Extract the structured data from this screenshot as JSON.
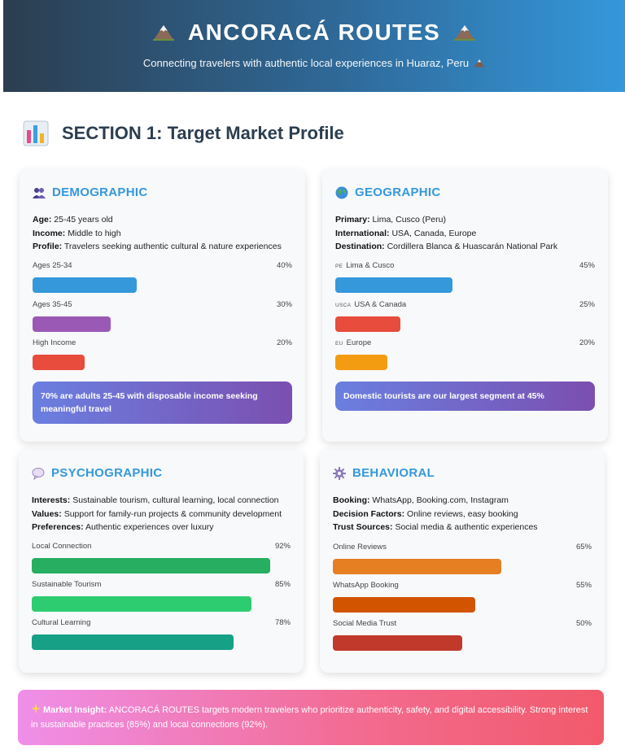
{
  "header": {
    "title": "ANCORACÁ ROUTES",
    "subtitle": "Connecting travelers with authentic local experiences in Huaraz, Peru",
    "icon": "mountain-icon"
  },
  "section": {
    "title": "SECTION 1: Target Market Profile",
    "icon": "bar-chart-icon"
  },
  "demographic": {
    "title": "DEMOGRAPHIC",
    "icon": "people-icon",
    "facts": [
      {
        "label": "Age:",
        "value": "25-45 years old"
      },
      {
        "label": "Income:",
        "value": "Middle to high"
      },
      {
        "label": "Profile:",
        "value": "Travelers seeking authentic cultural & nature experiences"
      }
    ],
    "bars": [
      {
        "label": "Ages 25-34",
        "pct": "40%",
        "value": 40,
        "color": "#3498db"
      },
      {
        "label": "Ages 35-45",
        "pct": "30%",
        "value": 30,
        "color": "#9b59b6"
      },
      {
        "label": "High Income",
        "pct": "20%",
        "value": 20,
        "color": "#e74c3c"
      }
    ],
    "callout": "70% are adults 25-45 with disposable income seeking meaningful travel"
  },
  "geographic": {
    "title": "GEOGRAPHIC",
    "icon": "globe-icon",
    "facts": [
      {
        "label": "Primary:",
        "value": "Lima, Cusco (Peru)"
      },
      {
        "label": "International:",
        "value": "USA, Canada, Europe"
      },
      {
        "label": "Destination:",
        "value": "Cordillera Blanca & Huascarán National Park"
      }
    ],
    "bars": [
      {
        "flag": "PE",
        "label": "Lima & Cusco",
        "pct": "45%",
        "value": 45,
        "color": "#3498db"
      },
      {
        "flag": "USCA",
        "label": "USA & Canada",
        "pct": "25%",
        "value": 25,
        "color": "#e74c3c"
      },
      {
        "flag": "EU",
        "label": "Europe",
        "pct": "20%",
        "value": 20,
        "color": "#f39c12"
      }
    ],
    "callout": "Domestic tourists are our largest segment at 45%"
  },
  "psychographic": {
    "title": "PSYCHOGRAPHIC",
    "icon": "speech-bubble-icon",
    "facts": [
      {
        "label": "Interests:",
        "value": "Sustainable tourism, cultural learning, local connection"
      },
      {
        "label": "Values:",
        "value": "Support for family-run projects & community development"
      },
      {
        "label": "Preferences:",
        "value": "Authentic experiences over luxury"
      }
    ],
    "bars": [
      {
        "label": "Local Connection",
        "pct": "92%",
        "value": 92,
        "color": "#27ae60"
      },
      {
        "label": "Sustainable Tourism",
        "pct": "85%",
        "value": 85,
        "color": "#2ecc71"
      },
      {
        "label": "Cultural Learning",
        "pct": "78%",
        "value": 78,
        "color": "#16a085"
      }
    ]
  },
  "behavioral": {
    "title": "BEHAVIORAL",
    "icon": "gear-icon",
    "facts": [
      {
        "label": "Booking:",
        "value": "WhatsApp, Booking.com, Instagram"
      },
      {
        "label": "Decision Factors:",
        "value": "Online reviews, easy booking"
      },
      {
        "label": "Trust Sources:",
        "value": "Social media & authentic experiences"
      }
    ],
    "bars": [
      {
        "label": "Online Reviews",
        "pct": "65%",
        "value": 65,
        "color": "#e67e22"
      },
      {
        "label": "WhatsApp Booking",
        "pct": "55%",
        "value": 55,
        "color": "#d35400"
      },
      {
        "label": "Social Media Trust",
        "pct": "50%",
        "value": 50,
        "color": "#c0392b"
      }
    ]
  },
  "insight": {
    "icon": "sparkles-icon",
    "label": "Market Insight:",
    "text": "ANCORACÁ ROUTES targets modern travelers who prioritize authenticity, safety, and digital accessibility. Strong interest in sustainable practices (85%) and local connections (92%)."
  }
}
